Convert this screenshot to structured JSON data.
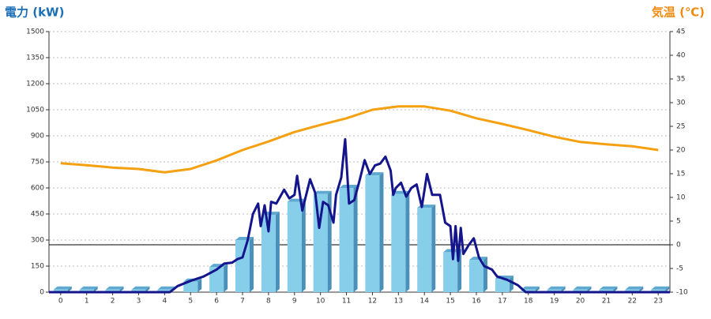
{
  "chart_data": {
    "type": "combo",
    "y_label": "電力 (kW)",
    "y2_label": "気温 (℃)",
    "categories": [
      "0",
      "1",
      "2",
      "3",
      "4",
      "5",
      "6",
      "7",
      "8",
      "9",
      "10",
      "11",
      "12",
      "13",
      "14",
      "15",
      "16",
      "17",
      "18",
      "19",
      "20",
      "21",
      "22",
      "23"
    ],
    "xlim": [
      -0.45,
      23.45
    ],
    "ylim": [
      0,
      1500
    ],
    "yticks": [
      0,
      150,
      300,
      450,
      600,
      750,
      900,
      1050,
      1200,
      1350,
      1500
    ],
    "y2lim": [
      -10,
      45
    ],
    "y2ticks": [
      -10,
      -5,
      0,
      5,
      10,
      15,
      20,
      25,
      30,
      35,
      40,
      45
    ],
    "grid": true,
    "y2_reference_line": 0,
    "series": [
      {
        "type": "bar",
        "color": "#87ceeb",
        "values": [
          15,
          15,
          15,
          15,
          15,
          60,
          145,
          300,
          445,
          520,
          565,
          600,
          672,
          565,
          486,
          230,
          186,
          77,
          15,
          15,
          15,
          15,
          15,
          15
        ]
      },
      {
        "type": "line",
        "color": "#14148c",
        "x": [
          -0.45,
          4.2,
          4.5,
          5,
          5.5,
          6,
          6.3,
          6.6,
          6.8,
          7,
          7.2,
          7.4,
          7.6,
          7.7,
          7.85,
          8,
          8.1,
          8.3,
          8.6,
          8.8,
          9,
          9.1,
          9.3,
          9.6,
          9.8,
          9.95,
          10.1,
          10.3,
          10.5,
          10.6,
          10.8,
          10.95,
          11.1,
          11.3,
          11.5,
          11.7,
          11.9,
          12.1,
          12.3,
          12.5,
          12.7,
          12.8,
          12.9,
          13.1,
          13.3,
          13.5,
          13.7,
          13.9,
          14.1,
          14.3,
          14.6,
          14.8,
          15,
          15.1,
          15.2,
          15.3,
          15.4,
          15.5,
          15.7,
          15.9,
          16.1,
          16.3,
          16.6,
          16.8,
          17.2,
          17.6,
          17.9,
          23.45
        ],
        "values": [
          0,
          0,
          35,
          65,
          90,
          130,
          165,
          170,
          190,
          200,
          300,
          450,
          510,
          380,
          500,
          350,
          520,
          510,
          590,
          540,
          560,
          670,
          470,
          650,
          570,
          370,
          520,
          500,
          400,
          560,
          660,
          880,
          510,
          530,
          640,
          760,
          680,
          730,
          740,
          780,
          700,
          560,
          600,
          630,
          550,
          600,
          620,
          490,
          680,
          560,
          560,
          400,
          380,
          190,
          380,
          180,
          370,
          220,
          270,
          310,
          200,
          150,
          130,
          90,
          70,
          40,
          0,
          0
        ]
      },
      {
        "type": "line",
        "axis": "y2",
        "color": "#f5a010",
        "values": [
          17.2,
          16.8,
          16.3,
          16,
          15.3,
          16,
          17.8,
          20,
          21.8,
          23.8,
          25.3,
          26.7,
          28.5,
          29.2,
          29.2,
          28.3,
          26.7,
          25.5,
          24.2,
          22.8,
          21.7,
          21.2,
          20.8,
          20
        ]
      }
    ]
  }
}
